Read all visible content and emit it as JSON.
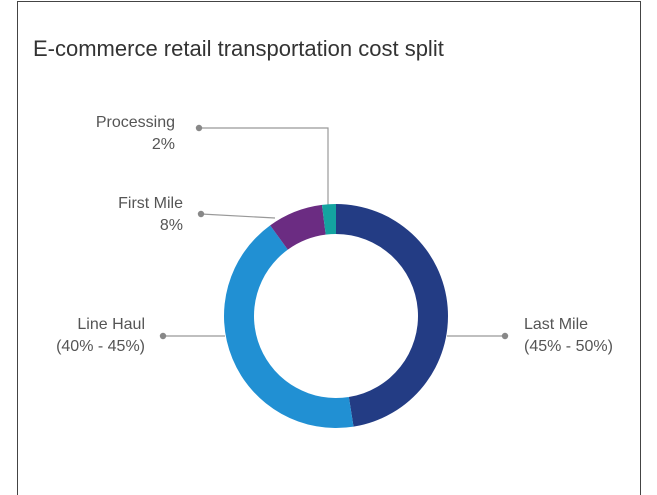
{
  "chart_data": {
    "type": "donut",
    "title": "E-commerce retail transportation cost split",
    "categories": [
      "Last Mile",
      "Line Haul",
      "First Mile",
      "Processing"
    ],
    "values": [
      47.5,
      42.5,
      8,
      2
    ],
    "value_labels": [
      "(45% - 50%)",
      "(40% - 45%)",
      "8%",
      "2%"
    ],
    "colors": [
      "#233c84",
      "#2190d3",
      "#6b2c82",
      "#14a3a0"
    ]
  }
}
